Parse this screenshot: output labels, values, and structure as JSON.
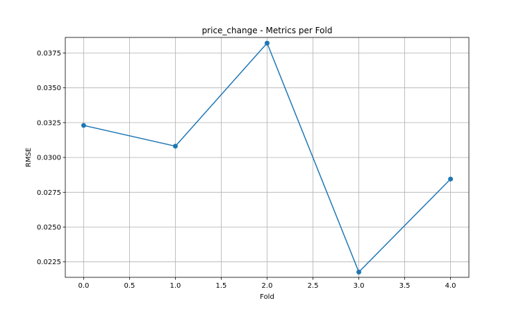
{
  "chart_data": {
    "type": "line",
    "title": "price_change - Metrics per Fold",
    "xlabel": "Fold",
    "ylabel": "RMSE",
    "x": [
      0,
      1,
      2,
      3,
      4
    ],
    "series": [
      {
        "values": [
          0.0323,
          0.03081,
          0.03821,
          0.02177,
          0.02845
        ]
      }
    ],
    "xlim": [
      -0.2,
      4.2
    ],
    "ylim": [
      0.02139,
      0.03862
    ],
    "xticks": [
      0.0,
      0.5,
      1.0,
      1.5,
      2.0,
      2.5,
      3.0,
      3.5,
      4.0
    ],
    "xtick_labels": [
      "0.0",
      "0.5",
      "1.0",
      "1.5",
      "2.0",
      "2.5",
      "3.0",
      "3.5",
      "4.0"
    ],
    "yticks": [
      0.0225,
      0.025,
      0.0275,
      0.03,
      0.0325,
      0.035,
      0.0375
    ],
    "ytick_labels": [
      "0.0225",
      "0.0250",
      "0.0275",
      "0.0300",
      "0.0325",
      "0.0350",
      "0.0375"
    ],
    "grid": true,
    "marker": "circle",
    "line_color": "#1f77b4"
  }
}
